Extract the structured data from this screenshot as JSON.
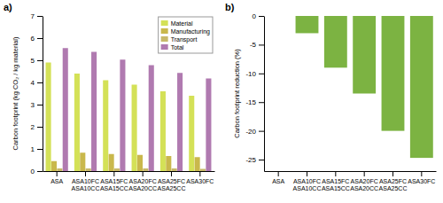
{
  "chart_data": [
    {
      "type": "bar",
      "annotations": [
        "a)"
      ],
      "categories": [
        "ASA",
        "ASA10FC\nASA10CC",
        "ASA15FC\nASA15CC",
        "ASA20FC\nASA20CC",
        "ASA25FC\nASA25CC",
        "ASA30FC"
      ],
      "series": [
        {
          "name": "Material",
          "color": "#d4e157",
          "values": [
            4.9,
            4.4,
            4.1,
            3.9,
            3.6,
            3.4
          ]
        },
        {
          "name": "Manufacturing",
          "color": "#c9b84c",
          "values": [
            0.45,
            0.83,
            0.77,
            0.73,
            0.68,
            0.63
          ]
        },
        {
          "name": "Transport",
          "color": "#c8b96a",
          "values": [
            0.12,
            0.12,
            0.12,
            0.12,
            0.12,
            0.1
          ]
        },
        {
          "name": "Total",
          "color": "#b07ab0",
          "values": [
            5.55,
            5.38,
            5.03,
            4.78,
            4.43,
            4.18
          ]
        }
      ],
      "y_label": "Carbon footprint (kg CO₂ / kg material)",
      "ylim": [
        0,
        7
      ],
      "yticks": [
        0,
        1,
        2,
        3,
        4,
        5,
        6,
        7
      ],
      "legend": "upper right",
      "grid": false
    },
    {
      "type": "bar",
      "annotations": [
        "b)"
      ],
      "categories": [
        "ASA",
        "ASA10FC\nASA10CC",
        "ASA15FC\nASA15CC",
        "ASA20FC\nASA20CC",
        "ASA25FC\nASA25CC",
        "ASA30FC"
      ],
      "values": [
        0,
        -3.0,
        -9.0,
        -13.5,
        -20.0,
        -24.7
      ],
      "color": "#7cb342",
      "y_label": "Carbon footprint reduction (%)",
      "ylim": [
        -27,
        0
      ],
      "yticks": [
        0,
        -5,
        -10,
        -15,
        -20,
        -25
      ],
      "grid": false
    }
  ]
}
